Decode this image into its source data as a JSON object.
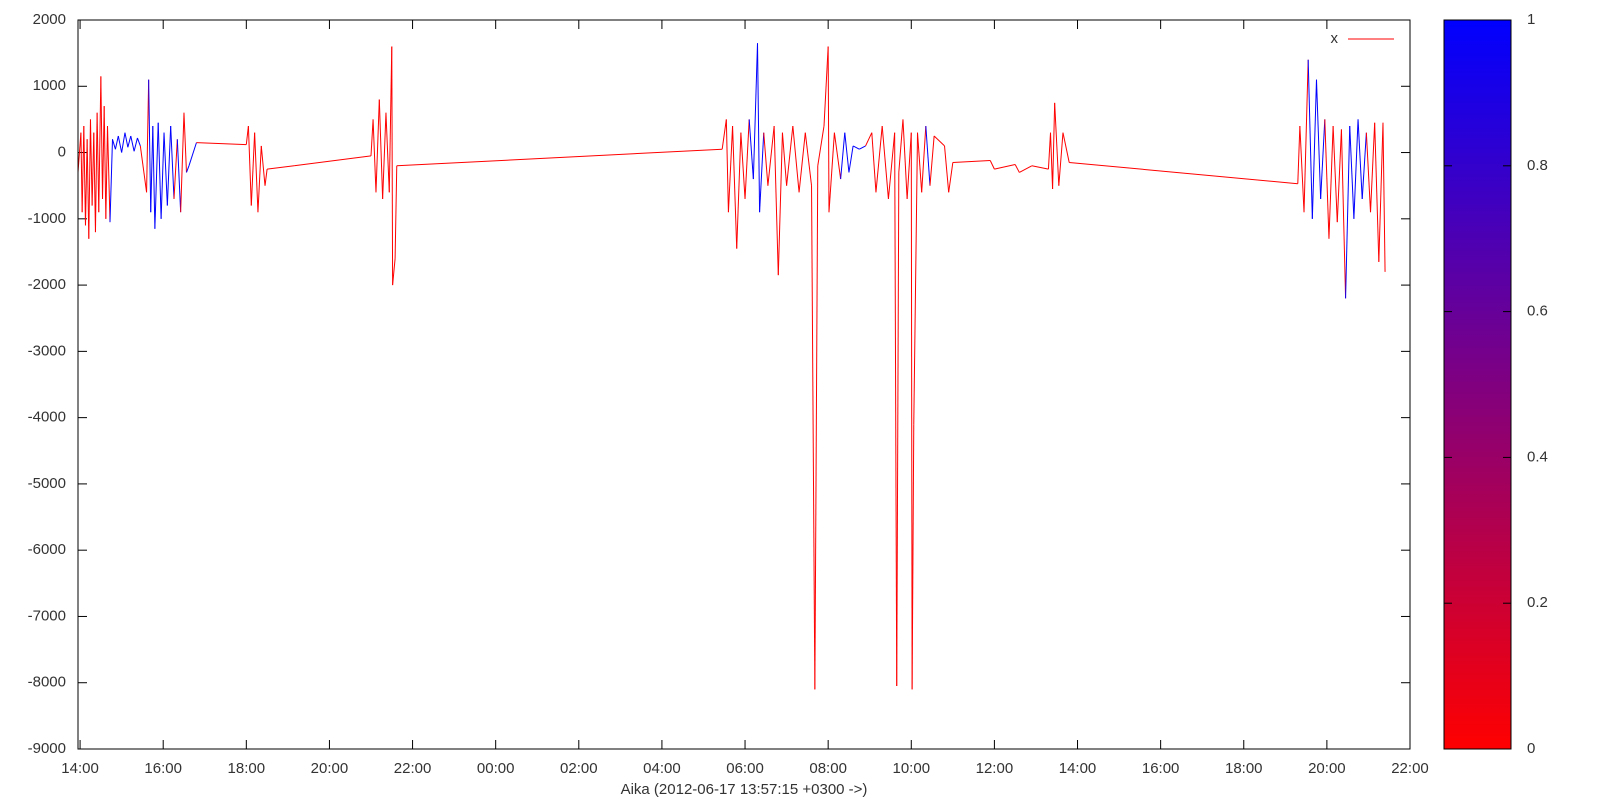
{
  "chart_data": {
    "type": "line",
    "xlabel": "Aika (2012-06-17 13:57:15 +0300 ->)",
    "xlim": [
      -0.05,
      32
    ],
    "xticks": [
      {
        "value": 0,
        "label": "14:00"
      },
      {
        "value": 2,
        "label": "16:00"
      },
      {
        "value": 4,
        "label": "18:00"
      },
      {
        "value": 6,
        "label": "20:00"
      },
      {
        "value": 8,
        "label": "22:00"
      },
      {
        "value": 10,
        "label": "00:00"
      },
      {
        "value": 12,
        "label": "02:00"
      },
      {
        "value": 14,
        "label": "04:00"
      },
      {
        "value": 16,
        "label": "06:00"
      },
      {
        "value": 18,
        "label": "08:00"
      },
      {
        "value": 20,
        "label": "10:00"
      },
      {
        "value": 22,
        "label": "12:00"
      },
      {
        "value": 24,
        "label": "14:00"
      },
      {
        "value": 26,
        "label": "16:00"
      },
      {
        "value": 28,
        "label": "18:00"
      },
      {
        "value": 30,
        "label": "20:00"
      },
      {
        "value": 32,
        "label": "22:00"
      }
    ],
    "ylim": [
      -9000,
      2000
    ],
    "yticks": [
      -9000,
      -8000,
      -7000,
      -6000,
      -5000,
      -4000,
      -3000,
      -2000,
      -1000,
      0,
      1000,
      2000
    ],
    "legend": "top-right",
    "palette": [
      "#ff0000",
      "#0000ff"
    ],
    "cblim": [
      0,
      1
    ],
    "cbticks": [
      0,
      0.2,
      0.4,
      0.6,
      0.8,
      1
    ],
    "series": [
      {
        "name": "x",
        "color": "#ff0000",
        "x": [
          -0.05,
          0.02,
          0.05,
          0.09,
          0.13,
          0.17,
          0.21,
          0.25,
          0.29,
          0.33,
          0.37,
          0.41,
          0.45,
          0.5,
          0.54,
          0.58,
          0.62,
          0.66,
          0.72,
          0.78,
          0.85,
          0.92,
          1.0,
          1.08,
          1.15,
          1.22,
          1.3,
          1.38,
          1.45,
          1.6,
          1.65,
          1.7,
          1.75,
          1.8,
          1.88,
          1.95,
          2.02,
          2.1,
          2.18,
          2.26,
          2.34,
          2.42,
          2.5,
          2.56,
          2.62,
          2.8,
          4.0,
          4.05,
          4.12,
          4.2,
          4.28,
          4.36,
          4.45,
          4.5,
          5.15,
          7.0,
          7.05,
          7.12,
          7.2,
          7.28,
          7.36,
          7.44,
          7.5,
          7.52,
          7.58,
          7.62,
          15.45,
          15.55,
          15.6,
          15.7,
          15.8,
          15.9,
          16.0,
          16.1,
          16.2,
          16.3,
          16.35,
          16.45,
          16.55,
          16.7,
          16.8,
          16.9,
          17.0,
          17.15,
          17.3,
          17.45,
          17.6,
          17.68,
          17.75,
          17.9,
          18.0,
          18.02,
          18.15,
          18.3,
          18.4,
          18.5,
          18.6,
          18.75,
          18.9,
          19.05,
          19.15,
          19.3,
          19.45,
          19.6,
          19.65,
          19.7,
          19.8,
          19.9,
          20.0,
          20.02,
          20.06,
          20.15,
          20.25,
          20.35,
          20.45,
          20.55,
          20.8,
          20.9,
          21.0,
          21.9,
          22.0,
          22.5,
          22.6,
          22.9,
          23.3,
          23.35,
          23.4,
          23.45,
          23.55,
          23.65,
          23.8,
          29.3,
          29.35,
          29.45,
          29.55,
          29.65,
          29.75,
          29.85,
          29.95,
          30.05,
          30.15,
          30.25,
          30.35,
          30.45,
          30.55,
          30.65,
          30.75,
          30.85,
          30.95,
          31.05,
          31.15,
          31.25,
          31.35,
          31.4
        ],
        "values": [
          -300,
          300,
          -900,
          400,
          -1100,
          200,
          -1300,
          500,
          -800,
          300,
          -1200,
          600,
          -900,
          1150,
          -700,
          700,
          -1000,
          400,
          -1050,
          200,
          50,
          250,
          0,
          300,
          80,
          250,
          20,
          220,
          100,
          -600,
          1100,
          -900,
          400,
          -1150,
          450,
          -1000,
          300,
          -800,
          400,
          -700,
          200,
          -900,
          600,
          -300,
          -200,
          150,
          120,
          400,
          -800,
          300,
          -900,
          100,
          -500,
          -250,
          -200,
          -50,
          500,
          -600,
          800,
          -700,
          600,
          -600,
          1600,
          -2000,
          -1600,
          -200,
          50,
          500,
          -900,
          400,
          -1450,
          300,
          -700,
          500,
          -400,
          1650,
          -900,
          300,
          -500,
          400,
          -1850,
          300,
          -500,
          400,
          -600,
          300,
          -500,
          -8100,
          -200,
          400,
          1600,
          -900,
          300,
          -400,
          300,
          -300,
          100,
          50,
          100,
          300,
          -600,
          400,
          -700,
          300,
          -8050,
          -300,
          500,
          -700,
          300,
          -8100,
          -4100,
          300,
          -600,
          400,
          -500,
          250,
          100,
          -600,
          -150,
          -120,
          -250,
          -180,
          -300,
          -200,
          -250,
          300,
          -550,
          750,
          -500,
          300,
          -150,
          -470,
          400,
          -900,
          1400,
          -1000,
          1100,
          -700,
          500,
          -1300,
          400,
          -1050,
          350,
          -2200,
          400,
          -1000,
          500,
          -700,
          300,
          -900,
          450,
          -1650,
          450,
          -1800
        ],
        "color_values": [
          0,
          0,
          0,
          0,
          0,
          0,
          0,
          0,
          0,
          0,
          0,
          0,
          0,
          0,
          0,
          0,
          0,
          0,
          0,
          1,
          1,
          1,
          1,
          1,
          1,
          1,
          1,
          1,
          1,
          0,
          0,
          1,
          1,
          1,
          1,
          1,
          1,
          1,
          1,
          1,
          0,
          1,
          0,
          0,
          1,
          1,
          0,
          0,
          0,
          0,
          0,
          0,
          0,
          0,
          0,
          0,
          0,
          0,
          0,
          0,
          0,
          0,
          0,
          0,
          0,
          0,
          0,
          0,
          0,
          0,
          0,
          0,
          0,
          0,
          1,
          1,
          1,
          1,
          0,
          0,
          0,
          0,
          0,
          0,
          0,
          0,
          0,
          0,
          0,
          0,
          0,
          0,
          0,
          0,
          1,
          1,
          1,
          1,
          1,
          0,
          0,
          0,
          0,
          0,
          0,
          0,
          0,
          0,
          0,
          0,
          0,
          0,
          0,
          0,
          1,
          0,
          0,
          0,
          0,
          0,
          0,
          0,
          0,
          0,
          0,
          0,
          0,
          0,
          0,
          0,
          0,
          0,
          0,
          0,
          0,
          1,
          1,
          1,
          1,
          0,
          0,
          0,
          0,
          0,
          1,
          1,
          1,
          1,
          1,
          0,
          0,
          0,
          0,
          0
        ]
      }
    ]
  }
}
